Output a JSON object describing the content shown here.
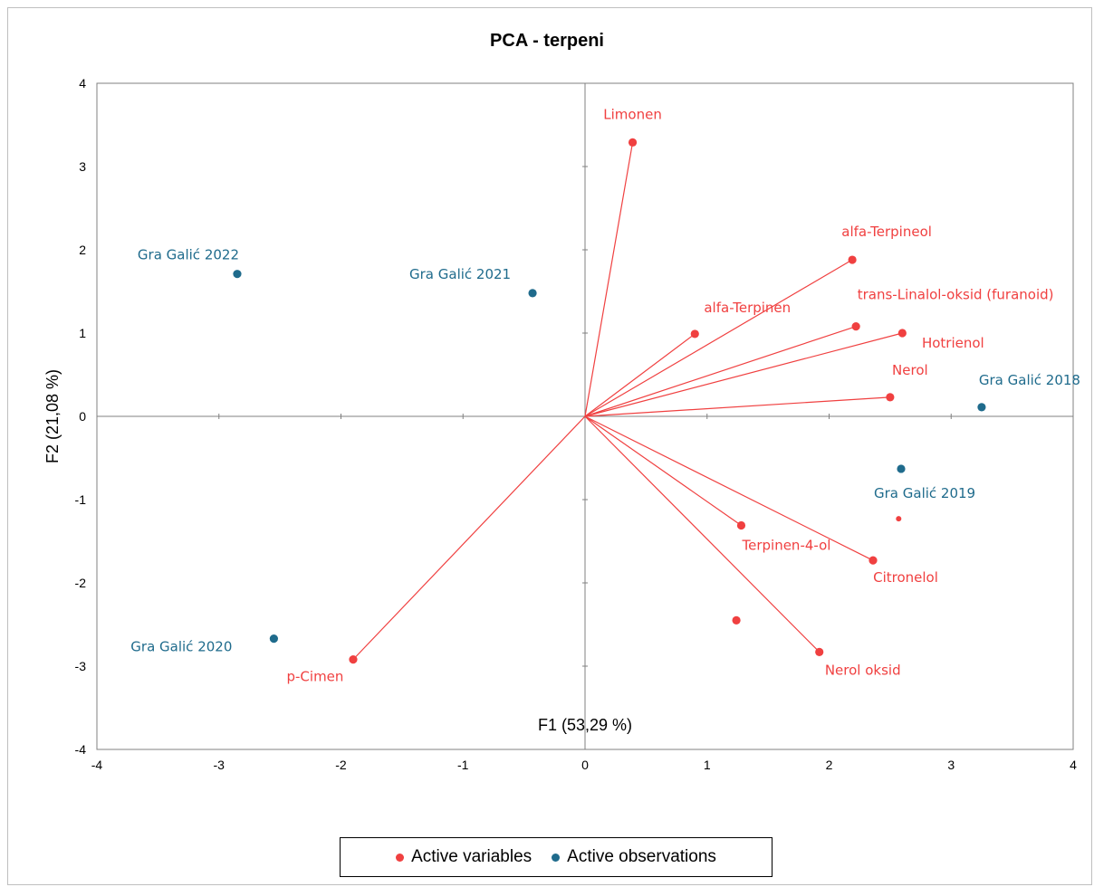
{
  "colors": {
    "variables": "#f04040",
    "observations": "#1f6b8c",
    "axis": "#808080"
  },
  "chart_data": {
    "type": "scatter",
    "title": "PCA - terpeni",
    "xlabel": "F1 (53,29 %)",
    "ylabel": "F2 (21,08 %)",
    "xlim": [
      -4,
      4
    ],
    "ylim": [
      -4,
      4
    ],
    "xticks": [
      "-4",
      "-3",
      "-2",
      "-1",
      "0",
      "1",
      "2",
      "3",
      "4"
    ],
    "yticks": [
      "-4",
      "-3",
      "-2",
      "-1",
      "0",
      "1",
      "2",
      "3",
      "4"
    ],
    "grid": false,
    "legend_position": "bottom",
    "series": [
      {
        "name": "Active variables",
        "points": [
          {
            "label": "Limonen",
            "x": 0.39,
            "y": 3.29,
            "vector": true
          },
          {
            "label": "alfa-Terpineol",
            "x": 2.19,
            "y": 1.88,
            "vector": true
          },
          {
            "label": "trans-Linalol-oksid (furanoid)",
            "x": 2.22,
            "y": 1.08,
            "vector": true
          },
          {
            "label": "alfa-Terpinen",
            "x": 0.9,
            "y": 0.99,
            "vector": true
          },
          {
            "label": "Hotrienol",
            "x": 2.6,
            "y": 1.0,
            "vector": true
          },
          {
            "label": "Nerol",
            "x": 2.5,
            "y": 0.23,
            "vector": true
          },
          {
            "label": "Terpinen-4-ol",
            "x": 1.28,
            "y": -1.31,
            "vector": true
          },
          {
            "label": "Citronelol",
            "x": 2.36,
            "y": -1.73,
            "vector": true
          },
          {
            "label": "Nerol oksid",
            "x": 1.92,
            "y": -2.83,
            "vector": true
          },
          {
            "label": "p-Cimen",
            "x": -1.9,
            "y": -2.92,
            "vector": true
          },
          {
            "label": "",
            "x": 1.24,
            "y": -2.45,
            "vector": false
          },
          {
            "label": "",
            "x": 2.57,
            "y": -1.23,
            "vector": false,
            "small": true
          }
        ]
      },
      {
        "name": "Active observations",
        "points": [
          {
            "label": "Gra Galić 2022",
            "x": -2.85,
            "y": 1.71
          },
          {
            "label": "Gra Galić 2021",
            "x": -0.43,
            "y": 1.48
          },
          {
            "label": "Gra Galić 2018",
            "x": 3.25,
            "y": 0.11
          },
          {
            "label": "Gra Galić 2019",
            "x": 2.59,
            "y": -0.63
          },
          {
            "label": "Gra Galić 2020",
            "x": -2.55,
            "y": -2.67
          }
        ]
      }
    ]
  },
  "legend": {
    "variables_label": "Active variables",
    "observations_label": "Active observations"
  }
}
